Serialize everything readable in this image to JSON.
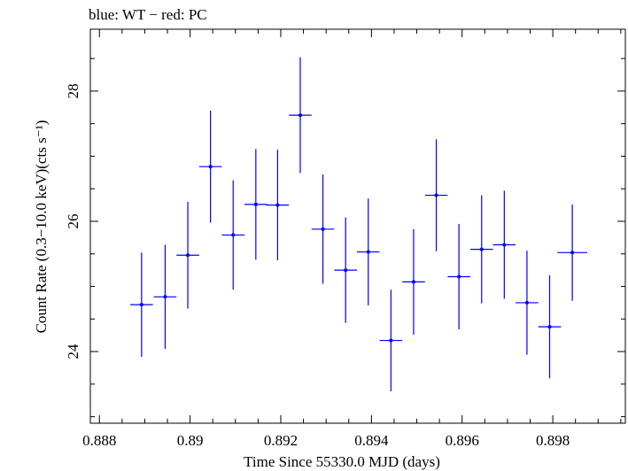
{
  "header": {
    "title": "blue: WT − red: PC"
  },
  "colors": {
    "series": "#0000ff",
    "axis": "#000000",
    "background": "#ffffff"
  },
  "chart_data": {
    "type": "scatter",
    "title": "blue: WT − red: PC",
    "xlabel": "Time Since 55330.0 MJD (days)",
    "ylabel": "Count Rate (0.3−10.0 keV)(cts s⁻¹)",
    "xlim": [
      0.8878,
      0.8996
    ],
    "ylim": [
      22.9,
      28.95
    ],
    "x_ticks": [
      0.888,
      0.89,
      0.892,
      0.894,
      0.896,
      0.898
    ],
    "x_tick_labels": [
      "0.888",
      "0.89",
      "0.892",
      "0.894",
      "0.896",
      "0.898"
    ],
    "y_ticks": [
      24,
      26,
      28
    ],
    "y_tick_labels": [
      "24",
      "26",
      "28"
    ],
    "grid": false,
    "series": [
      {
        "color": "#0000ff",
        "points": [
          {
            "x": 0.88893,
            "xerr": 0.00025,
            "y": 24.72,
            "yerr": 0.8
          },
          {
            "x": 0.88945,
            "xerr": 0.00025,
            "y": 24.84,
            "yerr": 0.8
          },
          {
            "x": 0.88995,
            "xerr": 0.00025,
            "y": 25.48,
            "yerr": 0.82
          },
          {
            "x": 0.89045,
            "xerr": 0.00025,
            "y": 26.84,
            "yerr": 0.86
          },
          {
            "x": 0.89095,
            "xerr": 0.00025,
            "y": 25.79,
            "yerr": 0.84
          },
          {
            "x": 0.89145,
            "xerr": 0.00025,
            "y": 26.26,
            "yerr": 0.85
          },
          {
            "x": 0.89193,
            "xerr": 0.00025,
            "y": 26.25,
            "yerr": 0.85
          },
          {
            "x": 0.89243,
            "xerr": 0.00025,
            "y": 27.63,
            "yerr": 0.89
          },
          {
            "x": 0.89293,
            "xerr": 0.00025,
            "y": 25.88,
            "yerr": 0.84
          },
          {
            "x": 0.89343,
            "xerr": 0.00025,
            "y": 25.25,
            "yerr": 0.81
          },
          {
            "x": 0.89393,
            "xerr": 0.00025,
            "y": 25.53,
            "yerr": 0.82
          },
          {
            "x": 0.89443,
            "xerr": 0.00025,
            "y": 24.17,
            "yerr": 0.78
          },
          {
            "x": 0.89493,
            "xerr": 0.00025,
            "y": 25.07,
            "yerr": 0.81
          },
          {
            "x": 0.89543,
            "xerr": 0.00025,
            "y": 26.4,
            "yerr": 0.86
          },
          {
            "x": 0.89593,
            "xerr": 0.00025,
            "y": 25.15,
            "yerr": 0.81
          },
          {
            "x": 0.89643,
            "xerr": 0.00025,
            "y": 25.57,
            "yerr": 0.83
          },
          {
            "x": 0.89693,
            "xerr": 0.00025,
            "y": 25.64,
            "yerr": 0.83
          },
          {
            "x": 0.89743,
            "xerr": 0.00025,
            "y": 24.75,
            "yerr": 0.8
          },
          {
            "x": 0.89793,
            "xerr": 0.00025,
            "y": 24.38,
            "yerr": 0.79
          },
          {
            "x": 0.89843,
            "xerr": 0.00033,
            "y": 25.52,
            "yerr": 0.74
          }
        ]
      }
    ]
  }
}
